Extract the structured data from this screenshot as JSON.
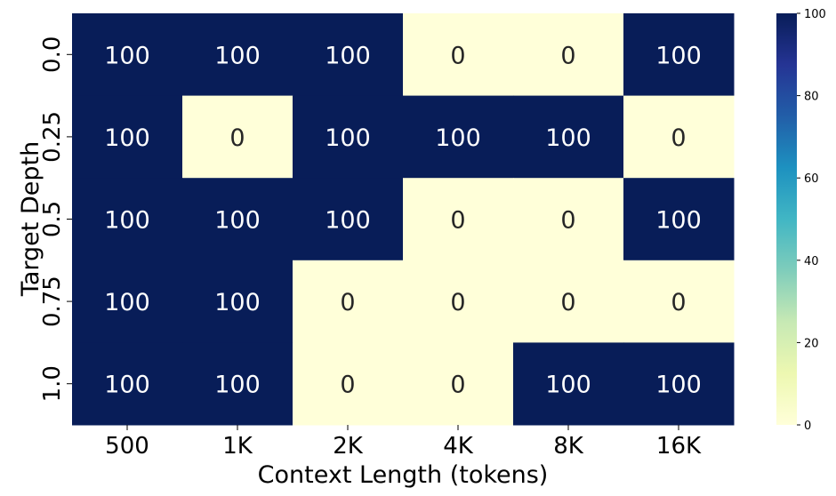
{
  "chart_data": {
    "type": "heatmap",
    "x_categories": [
      "500",
      "1K",
      "2K",
      "4K",
      "8K",
      "16K"
    ],
    "y_categories": [
      "0.0",
      "0.25",
      "0.5",
      "0.75",
      "1.0"
    ],
    "values": [
      [
        100,
        100,
        100,
        0,
        0,
        100
      ],
      [
        100,
        0,
        100,
        100,
        100,
        0
      ],
      [
        100,
        100,
        100,
        0,
        0,
        100
      ],
      [
        100,
        100,
        0,
        0,
        0,
        0
      ],
      [
        100,
        100,
        0,
        0,
        100,
        100
      ]
    ],
    "cell_labels": [
      [
        "100",
        "100",
        "100",
        "0",
        "0",
        "100"
      ],
      [
        "100",
        "0",
        "100",
        "100",
        "100",
        "0"
      ],
      [
        "100",
        "100",
        "100",
        "0",
        "0",
        "100"
      ],
      [
        "100",
        "100",
        "0",
        "0",
        "0",
        "0"
      ],
      [
        "100",
        "100",
        "0",
        "0",
        "100",
        "100"
      ]
    ],
    "xlabel": "Context Length (tokens)",
    "ylabel": "Target Depth",
    "colormap": "YlGnBu",
    "colorbar": {
      "range": [
        0,
        100
      ],
      "ticks": [
        0,
        20,
        40,
        60,
        80,
        100
      ],
      "tick_labels": [
        "0",
        "20",
        "40",
        "60",
        "80",
        "100"
      ]
    },
    "colors": {
      "low": "#ffffd9",
      "high": "#081d58",
      "annot_on_dark": "#ffffff",
      "annot_on_light": "#262626"
    }
  }
}
